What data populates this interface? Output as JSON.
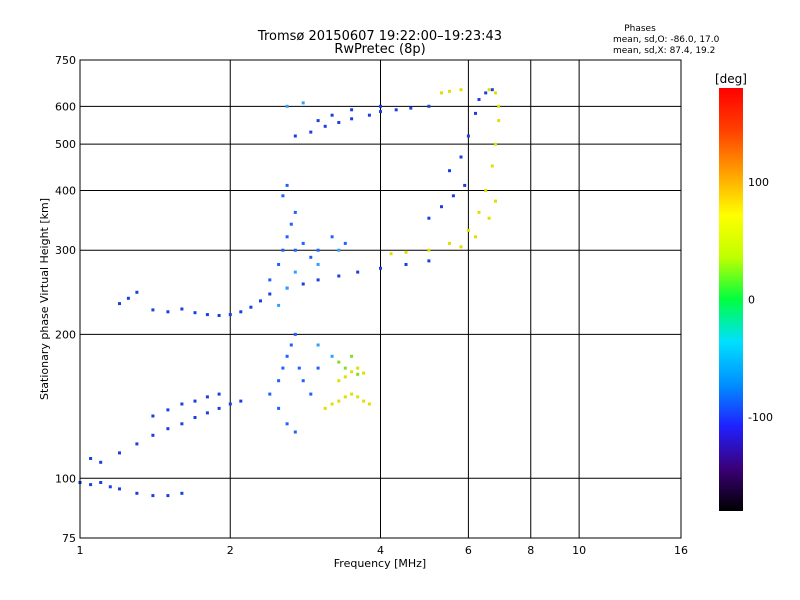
{
  "chart_data": {
    "type": "scatter",
    "title": "Tromsø 20150607 19:22:00–19:23:43",
    "subtitle": "RwPretec (8p)",
    "xlabel": "Frequency [MHz]",
    "ylabel": "Stationary phase Virtual Height [km]",
    "x_scale": "log",
    "y_scale": "log",
    "xlim": [
      1,
      16
    ],
    "ylim": [
      75,
      750
    ],
    "x_ticks": [
      1,
      2,
      4,
      6,
      8,
      10,
      16
    ],
    "y_ticks": [
      75,
      100,
      200,
      300,
      400,
      500,
      600,
      750
    ],
    "grid": true,
    "phases_box": {
      "title": "Phases",
      "line1": "mean, sd,O: -86.0, 17.0",
      "line2": "mean, sd,X:  87.4, 19.2"
    },
    "colorbar": {
      "label": "[deg]",
      "range": [
        -180,
        180
      ],
      "ticks": [
        100,
        0,
        -100
      ],
      "colors": [
        "#000000",
        "#3a0078",
        "#2020ff",
        "#0090ff",
        "#00e0ff",
        "#00ff40",
        "#c0ff00",
        "#ffff00",
        "#ffa000",
        "#ff4000",
        "#ff0000"
      ]
    },
    "series": [
      {
        "color": "#1a3fe0",
        "phase": -100,
        "points": [
          [
            1.0,
            98
          ],
          [
            1.05,
            97
          ],
          [
            1.1,
            98
          ],
          [
            1.15,
            96
          ],
          [
            1.2,
            95
          ],
          [
            1.3,
            93
          ],
          [
            1.4,
            92
          ],
          [
            1.5,
            92
          ],
          [
            1.6,
            93
          ],
          [
            1.05,
            110
          ],
          [
            1.1,
            108
          ],
          [
            1.2,
            113
          ],
          [
            1.3,
            118
          ],
          [
            1.4,
            123
          ],
          [
            1.5,
            127
          ],
          [
            1.6,
            130
          ],
          [
            1.7,
            134
          ],
          [
            1.8,
            137
          ],
          [
            1.9,
            140
          ],
          [
            2.0,
            143
          ],
          [
            2.1,
            145
          ],
          [
            1.4,
            135
          ],
          [
            1.5,
            139
          ],
          [
            1.6,
            143
          ],
          [
            1.7,
            145
          ],
          [
            1.8,
            148
          ],
          [
            1.9,
            150
          ],
          [
            1.4,
            225
          ],
          [
            1.5,
            223
          ],
          [
            1.6,
            226
          ],
          [
            1.7,
            222
          ],
          [
            1.8,
            220
          ],
          [
            1.9,
            219
          ],
          [
            2.0,
            220
          ],
          [
            2.1,
            223
          ],
          [
            2.2,
            228
          ],
          [
            2.3,
            235
          ],
          [
            2.4,
            243
          ],
          [
            2.6,
            250
          ],
          [
            2.8,
            255
          ],
          [
            3.0,
            260
          ],
          [
            3.3,
            265
          ],
          [
            3.6,
            270
          ],
          [
            4.0,
            275
          ],
          [
            4.5,
            280
          ],
          [
            5.0,
            285
          ],
          [
            1.3,
            245
          ],
          [
            1.25,
            238
          ],
          [
            1.2,
            232
          ],
          [
            2.7,
            520
          ],
          [
            2.9,
            530
          ],
          [
            3.1,
            545
          ],
          [
            3.3,
            555
          ],
          [
            3.5,
            565
          ],
          [
            3.8,
            575
          ],
          [
            4.0,
            585
          ],
          [
            4.3,
            590
          ],
          [
            4.6,
            595
          ],
          [
            5.0,
            600
          ],
          [
            3.0,
            560
          ],
          [
            3.2,
            575
          ],
          [
            3.5,
            590
          ],
          [
            4.0,
            600
          ],
          [
            5.5,
            440
          ],
          [
            5.8,
            470
          ],
          [
            6.0,
            520
          ],
          [
            6.2,
            580
          ],
          [
            6.3,
            620
          ],
          [
            6.5,
            640
          ],
          [
            6.7,
            650
          ],
          [
            5.0,
            350
          ],
          [
            5.3,
            370
          ],
          [
            5.6,
            390
          ],
          [
            5.9,
            410
          ]
        ]
      },
      {
        "color": "#2060ff",
        "phase": -100,
        "points": [
          [
            2.4,
            150
          ],
          [
            2.5,
            160
          ],
          [
            2.55,
            170
          ],
          [
            2.6,
            180
          ],
          [
            2.65,
            190
          ],
          [
            2.7,
            200
          ],
          [
            2.75,
            170
          ],
          [
            2.8,
            160
          ],
          [
            2.9,
            150
          ],
          [
            3.0,
            170
          ],
          [
            2.5,
            140
          ],
          [
            2.6,
            130
          ],
          [
            2.7,
            125
          ],
          [
            2.4,
            260
          ],
          [
            2.5,
            280
          ],
          [
            2.55,
            300
          ],
          [
            2.6,
            320
          ],
          [
            2.65,
            340
          ],
          [
            2.7,
            360
          ],
          [
            2.55,
            390
          ],
          [
            2.6,
            410
          ],
          [
            2.7,
            300
          ],
          [
            2.8,
            310
          ],
          [
            2.9,
            290
          ],
          [
            3.0,
            300
          ],
          [
            3.2,
            320
          ],
          [
            3.4,
            310
          ]
        ]
      },
      {
        "color": "#30a0ff",
        "phase": -40,
        "points": [
          [
            2.5,
            230
          ],
          [
            2.6,
            250
          ],
          [
            2.7,
            270
          ],
          [
            3.0,
            280
          ],
          [
            3.3,
            300
          ],
          [
            3.0,
            190
          ],
          [
            3.2,
            180
          ],
          [
            2.6,
            600
          ],
          [
            2.8,
            610
          ]
        ]
      },
      {
        "color": "#e0e000",
        "phase": 100,
        "points": [
          [
            3.1,
            140
          ],
          [
            3.2,
            143
          ],
          [
            3.3,
            145
          ],
          [
            3.4,
            148
          ],
          [
            3.5,
            150
          ],
          [
            3.6,
            148
          ],
          [
            3.7,
            145
          ],
          [
            3.8,
            143
          ],
          [
            3.3,
            160
          ],
          [
            3.4,
            163
          ],
          [
            3.5,
            167
          ],
          [
            3.6,
            170
          ],
          [
            3.7,
            166
          ],
          [
            4.2,
            295
          ],
          [
            4.5,
            297
          ],
          [
            5.0,
            300
          ],
          [
            5.5,
            310
          ],
          [
            6.0,
            330
          ],
          [
            6.3,
            360
          ],
          [
            6.5,
            400
          ],
          [
            6.7,
            450
          ],
          [
            6.8,
            500
          ],
          [
            6.9,
            560
          ],
          [
            6.9,
            600
          ],
          [
            6.8,
            640
          ],
          [
            6.6,
            650
          ],
          [
            5.8,
            305
          ],
          [
            6.2,
            320
          ],
          [
            6.6,
            350
          ],
          [
            6.8,
            380
          ],
          [
            5.3,
            640
          ],
          [
            5.5,
            645
          ],
          [
            5.8,
            650
          ]
        ]
      },
      {
        "color": "#80e020",
        "phase": 50,
        "points": [
          [
            3.3,
            175
          ],
          [
            3.5,
            180
          ],
          [
            3.4,
            170
          ],
          [
            3.6,
            165
          ]
        ]
      }
    ]
  }
}
